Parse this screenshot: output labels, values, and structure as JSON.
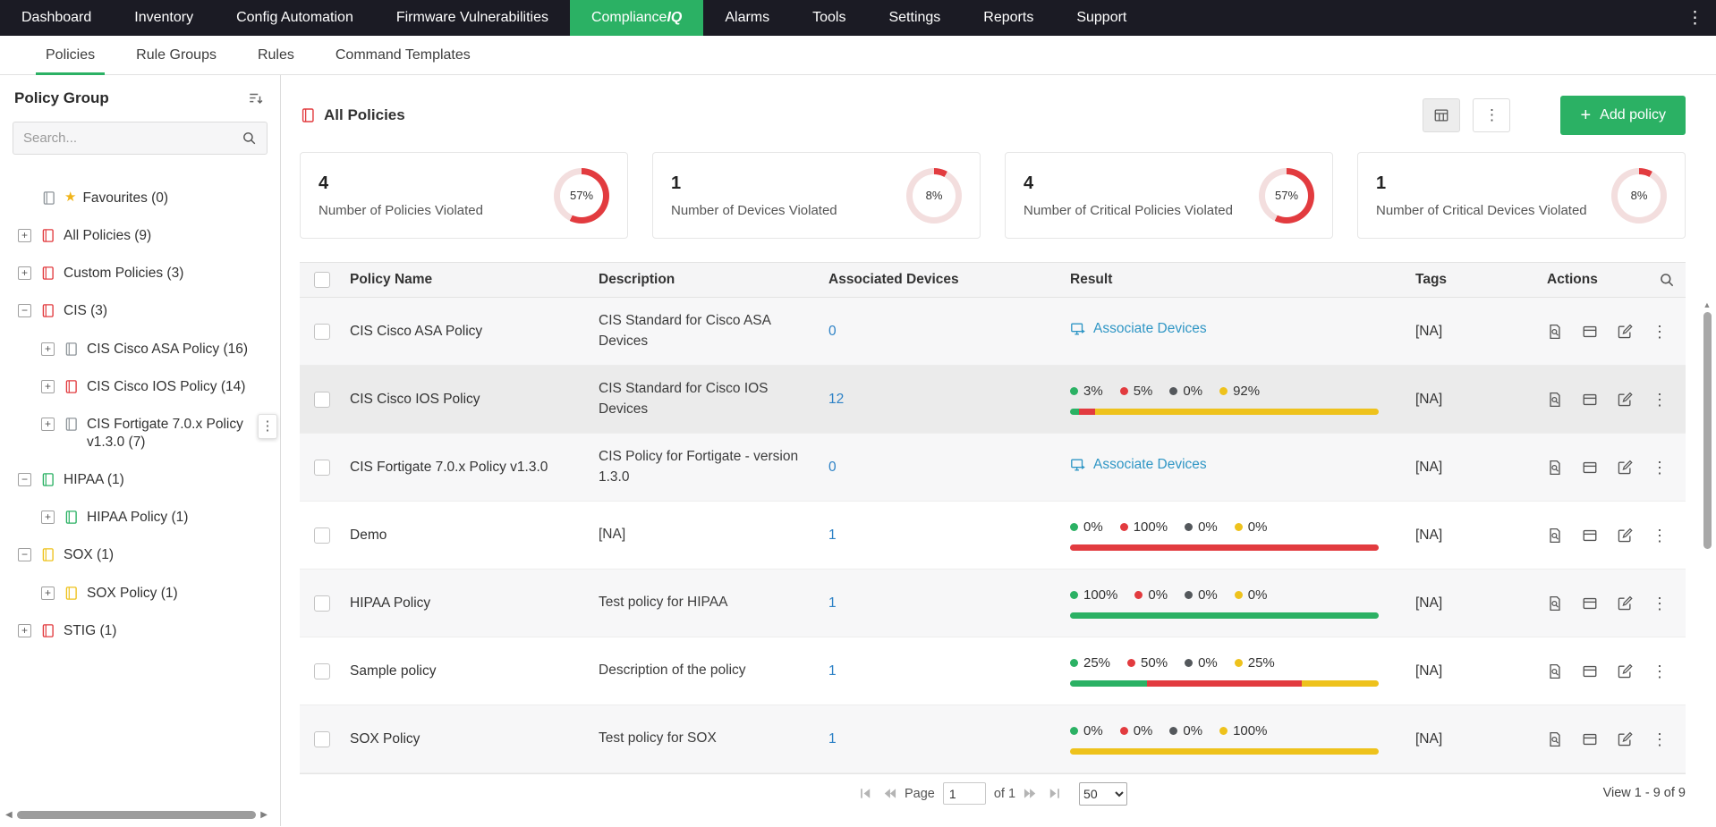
{
  "colors": {
    "accent_green": "#2bb164",
    "red": "#e23b3f",
    "yellow": "#eec21c",
    "green": "#2bb164",
    "gray_dot": "#54585c",
    "donut_red": "#e23b3f",
    "donut_track": "#f3dede",
    "link_blue": "#2e82c6",
    "associate_link_blue": "#2f96c5"
  },
  "topnav": {
    "items_left": [
      "Dashboard",
      "Inventory",
      "Config Automation",
      "Firmware Vulnerabilities"
    ],
    "active_tab": {
      "prefix": "Compliance",
      "suffix": "IQ"
    },
    "items_right": [
      "Alarms",
      "Tools",
      "Settings",
      "Reports",
      "Support"
    ]
  },
  "subnav": {
    "items": [
      "Policies",
      "Rule Groups",
      "Rules",
      "Command Templates"
    ]
  },
  "sidebar": {
    "title": "Policy Group",
    "search_placeholder": "Search...",
    "tree": [
      {
        "label": "Favourites (0)",
        "icon": "#8f969b"
      },
      {
        "label": "All Policies (9)",
        "icon": "#e23b3f",
        "expander": "+"
      },
      {
        "label": "Custom Policies (3)",
        "icon": "#e23b3f",
        "expander": "+"
      },
      {
        "label": "CIS (3)",
        "icon": "#e23b3f",
        "expander": "−"
      },
      {
        "label": "CIS Cisco ASA Policy (16)",
        "icon": "#8f969b",
        "expander": "+"
      },
      {
        "label": "CIS Cisco IOS Policy (14)",
        "icon": "#e23b3f",
        "expander": "+"
      },
      {
        "label": "CIS Fortigate 7.0.x Policy v1.3.0 (7)",
        "icon": "#8f969b",
        "expander": "+"
      },
      {
        "label": "HIPAA (1)",
        "icon": "#2bb164",
        "expander": "−"
      },
      {
        "label": "HIPAA Policy (1)",
        "icon": "#2bb164",
        "expander": "+"
      },
      {
        "label": "SOX (1)",
        "icon": "#eec21c",
        "expander": "−"
      },
      {
        "label": "SOX Policy (1)",
        "icon": "#eec21c",
        "expander": "+"
      },
      {
        "label": "STIG (1)",
        "icon": "#e23b3f",
        "expander": "+"
      }
    ]
  },
  "header": {
    "title": "All Policies",
    "add_button_label": "Add policy"
  },
  "stats": [
    {
      "value": "4",
      "label": "Number of Policies Violated",
      "percent": 57,
      "percent_label": "57%"
    },
    {
      "value": "1",
      "label": "Number of Devices Violated",
      "percent": 8,
      "percent_label": "8%"
    },
    {
      "value": "4",
      "label": "Number of Critical Policies Violated",
      "percent": 57,
      "percent_label": "57%"
    },
    {
      "value": "1",
      "label": "Number of Critical Devices Violated",
      "percent": 8,
      "percent_label": "8%"
    }
  ],
  "table": {
    "columns": [
      "Policy Name",
      "Description",
      "Associated Devices",
      "Result",
      "Tags",
      "Actions"
    ],
    "rows": [
      {
        "name": "CIS Cisco ASA Policy",
        "description": "CIS Standard for Cisco ASA Devices",
        "devices": "0",
        "result_type": "associate",
        "associate_label": "Associate Devices",
        "tags": "[NA]"
      },
      {
        "name": "CIS Cisco IOS Policy",
        "description": "CIS Standard for Cisco IOS Devices",
        "devices": "12",
        "result_type": "bar",
        "tags": "[NA]",
        "stats": [
          {
            "label": "3%",
            "value": 3,
            "color": "#2bb164"
          },
          {
            "label": "5%",
            "value": 5,
            "color": "#e23b3f"
          },
          {
            "label": "0%",
            "value": 0,
            "color": "#54585c"
          },
          {
            "label": "92%",
            "value": 92,
            "color": "#eec21c"
          }
        ]
      },
      {
        "name": "CIS Fortigate 7.0.x Policy v1.3.0",
        "description": "CIS Policy for Fortigate - version 1.3.0",
        "devices": "0",
        "result_type": "associate",
        "associate_label": "Associate Devices",
        "tags": "[NA]"
      },
      {
        "name": "Demo",
        "description": "[NA]",
        "devices": "1",
        "result_type": "bar",
        "tags": "[NA]",
        "stats": [
          {
            "label": "0%",
            "value": 0,
            "color": "#2bb164"
          },
          {
            "label": "100%",
            "value": 100,
            "color": "#e23b3f"
          },
          {
            "label": "0%",
            "value": 0,
            "color": "#54585c"
          },
          {
            "label": "0%",
            "value": 0,
            "color": "#eec21c"
          }
        ]
      },
      {
        "name": "HIPAA Policy",
        "description": "Test policy for HIPAA",
        "devices": "1",
        "result_type": "bar",
        "tags": "[NA]",
        "stats": [
          {
            "label": "100%",
            "value": 100,
            "color": "#2bb164"
          },
          {
            "label": "0%",
            "value": 0,
            "color": "#e23b3f"
          },
          {
            "label": "0%",
            "value": 0,
            "color": "#54585c"
          },
          {
            "label": "0%",
            "value": 0,
            "color": "#eec21c"
          }
        ]
      },
      {
        "name": "Sample policy",
        "description": "Description of the policy",
        "devices": "1",
        "result_type": "bar",
        "tags": "[NA]",
        "stats": [
          {
            "label": "25%",
            "value": 25,
            "color": "#2bb164"
          },
          {
            "label": "50%",
            "value": 50,
            "color": "#e23b3f"
          },
          {
            "label": "0%",
            "value": 0,
            "color": "#54585c"
          },
          {
            "label": "25%",
            "value": 25,
            "color": "#eec21c"
          }
        ]
      },
      {
        "name": "SOX Policy",
        "description": "Test policy for SOX",
        "devices": "1",
        "result_type": "bar",
        "tags": "[NA]",
        "stats": [
          {
            "label": "0%",
            "value": 0,
            "color": "#2bb164"
          },
          {
            "label": "0%",
            "value": 0,
            "color": "#e23b3f"
          },
          {
            "label": "0%",
            "value": 0,
            "color": "#54585c"
          },
          {
            "label": "100%",
            "value": 100,
            "color": "#eec21c"
          }
        ]
      }
    ]
  },
  "pagination": {
    "page_label": "Page",
    "page_value": "1",
    "of_label": "of 1",
    "page_size": "50",
    "view_label": "View 1 - 9 of 9"
  }
}
